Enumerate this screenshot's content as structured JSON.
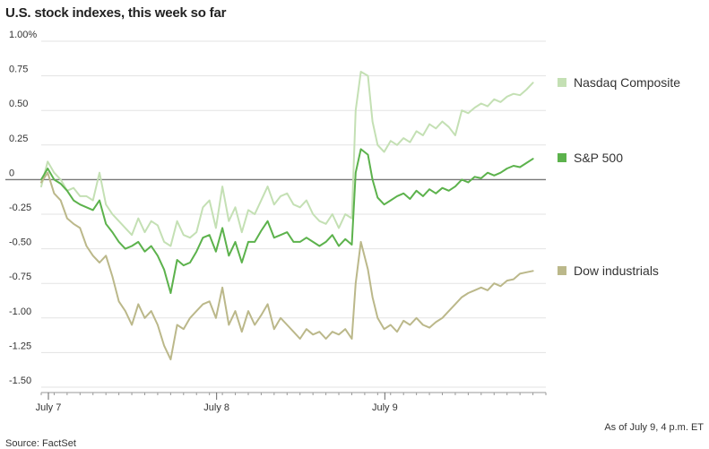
{
  "chart_data": {
    "type": "line",
    "title": "U.S. stock indexes, this week so far",
    "xlabel": "",
    "ylabel": "",
    "ylim": [
      -1.5,
      1.0
    ],
    "yticks": [
      {
        "value": 1.0,
        "label": "1.00%"
      },
      {
        "value": 0.75,
        "label": "0.75"
      },
      {
        "value": 0.5,
        "label": "0.50"
      },
      {
        "value": 0.25,
        "label": "0.25"
      },
      {
        "value": 0.0,
        "label": "0"
      },
      {
        "value": -0.25,
        "label": "-0.25"
      },
      {
        "value": -0.5,
        "label": "-0.50"
      },
      {
        "value": -0.75,
        "label": "-0.75"
      },
      {
        "value": -1.0,
        "label": "-1.00"
      },
      {
        "value": -1.25,
        "label": "-1.25"
      },
      {
        "value": -1.5,
        "label": "-1.50"
      }
    ],
    "xlim": [
      0,
      78
    ],
    "xticks": [
      {
        "value": 0,
        "label": "July 7"
      },
      {
        "value": 26,
        "label": "July 8"
      },
      {
        "value": 52,
        "label": "July 9"
      }
    ],
    "minor_ticks": [
      0,
      2,
      4,
      6,
      8,
      10,
      12,
      14,
      16,
      18,
      20,
      22,
      24,
      26,
      28,
      30,
      32,
      34,
      36,
      38,
      40,
      42,
      44,
      46,
      48,
      50,
      52,
      54,
      56,
      58,
      60,
      62,
      64,
      66,
      68,
      70,
      72,
      74,
      76,
      78
    ],
    "baseline": 0,
    "legend_position": "right",
    "series": [
      {
        "name": "Nasdaq Composite",
        "color": "#c4e0b4",
        "points": [
          [
            0,
            -0.05
          ],
          [
            1,
            0.13
          ],
          [
            2,
            0.05
          ],
          [
            3,
            0.0
          ],
          [
            4,
            -0.08
          ],
          [
            5,
            -0.06
          ],
          [
            6,
            -0.12
          ],
          [
            7,
            -0.12
          ],
          [
            8,
            -0.15
          ],
          [
            9,
            0.05
          ],
          [
            10,
            -0.18
          ],
          [
            11,
            -0.25
          ],
          [
            12,
            -0.3
          ],
          [
            13,
            -0.35
          ],
          [
            14,
            -0.4
          ],
          [
            15,
            -0.28
          ],
          [
            16,
            -0.38
          ],
          [
            17,
            -0.3
          ],
          [
            18,
            -0.33
          ],
          [
            19,
            -0.45
          ],
          [
            20,
            -0.48
          ],
          [
            21,
            -0.3
          ],
          [
            22,
            -0.4
          ],
          [
            23,
            -0.42
          ],
          [
            24,
            -0.38
          ],
          [
            25,
            -0.2
          ],
          [
            26,
            -0.15
          ],
          [
            27,
            -0.35
          ],
          [
            28,
            -0.05
          ],
          [
            29,
            -0.3
          ],
          [
            30,
            -0.2
          ],
          [
            31,
            -0.38
          ],
          [
            32,
            -0.22
          ],
          [
            33,
            -0.25
          ],
          [
            34,
            -0.15
          ],
          [
            35,
            -0.05
          ],
          [
            36,
            -0.18
          ],
          [
            37,
            -0.12
          ],
          [
            38,
            -0.1
          ],
          [
            39,
            -0.18
          ],
          [
            40,
            -0.2
          ],
          [
            41,
            -0.15
          ],
          [
            42,
            -0.25
          ],
          [
            43,
            -0.3
          ],
          [
            44,
            -0.32
          ],
          [
            45,
            -0.25
          ],
          [
            46,
            -0.35
          ],
          [
            47,
            -0.25
          ],
          [
            48,
            -0.28
          ],
          [
            48.6,
            0.5
          ],
          [
            49.4,
            0.78
          ],
          [
            50.5,
            0.75
          ],
          [
            51.2,
            0.42
          ],
          [
            52,
            0.25
          ],
          [
            53,
            0.2
          ],
          [
            54,
            0.28
          ],
          [
            55,
            0.25
          ],
          [
            56,
            0.3
          ],
          [
            57,
            0.27
          ],
          [
            58,
            0.35
          ],
          [
            59,
            0.32
          ],
          [
            60,
            0.4
          ],
          [
            61,
            0.37
          ],
          [
            62,
            0.42
          ],
          [
            63,
            0.38
          ],
          [
            64,
            0.32
          ],
          [
            65,
            0.5
          ],
          [
            66,
            0.48
          ],
          [
            67,
            0.52
          ],
          [
            68,
            0.55
          ],
          [
            69,
            0.53
          ],
          [
            70,
            0.58
          ],
          [
            71,
            0.56
          ],
          [
            72,
            0.6
          ],
          [
            73,
            0.62
          ],
          [
            74,
            0.61
          ],
          [
            75,
            0.65
          ],
          [
            76,
            0.7
          ]
        ]
      },
      {
        "name": "S&P 500",
        "color": "#5cb24c",
        "points": [
          [
            0,
            0.0
          ],
          [
            1,
            0.08
          ],
          [
            2,
            0.0
          ],
          [
            3,
            -0.03
          ],
          [
            4,
            -0.08
          ],
          [
            5,
            -0.15
          ],
          [
            6,
            -0.18
          ],
          [
            7,
            -0.2
          ],
          [
            8,
            -0.22
          ],
          [
            9,
            -0.15
          ],
          [
            10,
            -0.32
          ],
          [
            11,
            -0.38
          ],
          [
            12,
            -0.45
          ],
          [
            13,
            -0.5
          ],
          [
            14,
            -0.48
          ],
          [
            15,
            -0.45
          ],
          [
            16,
            -0.52
          ],
          [
            17,
            -0.48
          ],
          [
            18,
            -0.55
          ],
          [
            19,
            -0.65
          ],
          [
            20,
            -0.82
          ],
          [
            21,
            -0.58
          ],
          [
            22,
            -0.62
          ],
          [
            23,
            -0.6
          ],
          [
            24,
            -0.52
          ],
          [
            25,
            -0.42
          ],
          [
            26,
            -0.4
          ],
          [
            27,
            -0.52
          ],
          [
            28,
            -0.35
          ],
          [
            29,
            -0.55
          ],
          [
            30,
            -0.45
          ],
          [
            31,
            -0.6
          ],
          [
            32,
            -0.45
          ],
          [
            33,
            -0.45
          ],
          [
            34,
            -0.37
          ],
          [
            35,
            -0.3
          ],
          [
            36,
            -0.42
          ],
          [
            37,
            -0.4
          ],
          [
            38,
            -0.38
          ],
          [
            39,
            -0.45
          ],
          [
            40,
            -0.45
          ],
          [
            41,
            -0.42
          ],
          [
            42,
            -0.45
          ],
          [
            43,
            -0.48
          ],
          [
            44,
            -0.45
          ],
          [
            45,
            -0.4
          ],
          [
            46,
            -0.48
          ],
          [
            47,
            -0.43
          ],
          [
            48,
            -0.47
          ],
          [
            48.6,
            0.05
          ],
          [
            49.4,
            0.22
          ],
          [
            50.5,
            0.18
          ],
          [
            51.2,
            0.0
          ],
          [
            52,
            -0.13
          ],
          [
            53,
            -0.18
          ],
          [
            54,
            -0.15
          ],
          [
            55,
            -0.12
          ],
          [
            56,
            -0.1
          ],
          [
            57,
            -0.14
          ],
          [
            58,
            -0.08
          ],
          [
            59,
            -0.12
          ],
          [
            60,
            -0.07
          ],
          [
            61,
            -0.1
          ],
          [
            62,
            -0.06
          ],
          [
            63,
            -0.08
          ],
          [
            64,
            -0.05
          ],
          [
            65,
            0.0
          ],
          [
            66,
            -0.02
          ],
          [
            67,
            0.02
          ],
          [
            68,
            0.01
          ],
          [
            69,
            0.05
          ],
          [
            70,
            0.03
          ],
          [
            71,
            0.05
          ],
          [
            72,
            0.08
          ],
          [
            73,
            0.1
          ],
          [
            74,
            0.09
          ],
          [
            75,
            0.12
          ],
          [
            76,
            0.15
          ]
        ]
      },
      {
        "name": "Dow industrials",
        "color": "#bbb88a",
        "points": [
          [
            0,
            -0.02
          ],
          [
            1,
            0.05
          ],
          [
            2,
            -0.1
          ],
          [
            3,
            -0.15
          ],
          [
            4,
            -0.28
          ],
          [
            5,
            -0.32
          ],
          [
            6,
            -0.35
          ],
          [
            7,
            -0.48
          ],
          [
            8,
            -0.55
          ],
          [
            9,
            -0.6
          ],
          [
            10,
            -0.55
          ],
          [
            11,
            -0.7
          ],
          [
            12,
            -0.88
          ],
          [
            13,
            -0.95
          ],
          [
            14,
            -1.05
          ],
          [
            15,
            -0.9
          ],
          [
            16,
            -1.0
          ],
          [
            17,
            -0.95
          ],
          [
            18,
            -1.05
          ],
          [
            19,
            -1.2
          ],
          [
            20,
            -1.3
          ],
          [
            21,
            -1.05
          ],
          [
            22,
            -1.08
          ],
          [
            23,
            -1.0
          ],
          [
            24,
            -0.95
          ],
          [
            25,
            -0.9
          ],
          [
            26,
            -0.88
          ],
          [
            27,
            -1.0
          ],
          [
            28,
            -0.78
          ],
          [
            29,
            -1.05
          ],
          [
            30,
            -0.95
          ],
          [
            31,
            -1.1
          ],
          [
            32,
            -0.95
          ],
          [
            33,
            -1.05
          ],
          [
            34,
            -0.98
          ],
          [
            35,
            -0.9
          ],
          [
            36,
            -1.08
          ],
          [
            37,
            -1.0
          ],
          [
            38,
            -1.05
          ],
          [
            39,
            -1.1
          ],
          [
            40,
            -1.15
          ],
          [
            41,
            -1.08
          ],
          [
            42,
            -1.12
          ],
          [
            43,
            -1.1
          ],
          [
            44,
            -1.15
          ],
          [
            45,
            -1.1
          ],
          [
            46,
            -1.12
          ],
          [
            47,
            -1.08
          ],
          [
            48,
            -1.15
          ],
          [
            48.6,
            -0.75
          ],
          [
            49.4,
            -0.45
          ],
          [
            50.5,
            -0.65
          ],
          [
            51.2,
            -0.85
          ],
          [
            52,
            -1.0
          ],
          [
            53,
            -1.08
          ],
          [
            54,
            -1.05
          ],
          [
            55,
            -1.1
          ],
          [
            56,
            -1.02
          ],
          [
            57,
            -1.05
          ],
          [
            58,
            -1.0
          ],
          [
            59,
            -1.05
          ],
          [
            60,
            -1.07
          ],
          [
            61,
            -1.03
          ],
          [
            62,
            -1.0
          ],
          [
            63,
            -0.95
          ],
          [
            64,
            -0.9
          ],
          [
            65,
            -0.85
          ],
          [
            66,
            -0.82
          ],
          [
            67,
            -0.8
          ],
          [
            68,
            -0.78
          ],
          [
            69,
            -0.8
          ],
          [
            70,
            -0.75
          ],
          [
            71,
            -0.77
          ],
          [
            72,
            -0.73
          ],
          [
            73,
            -0.72
          ],
          [
            74,
            -0.68
          ],
          [
            75,
            -0.67
          ],
          [
            76,
            -0.66
          ]
        ]
      }
    ],
    "footnote": "As of July 9, 4 p.m. ET",
    "source": "Source: FactSet"
  }
}
